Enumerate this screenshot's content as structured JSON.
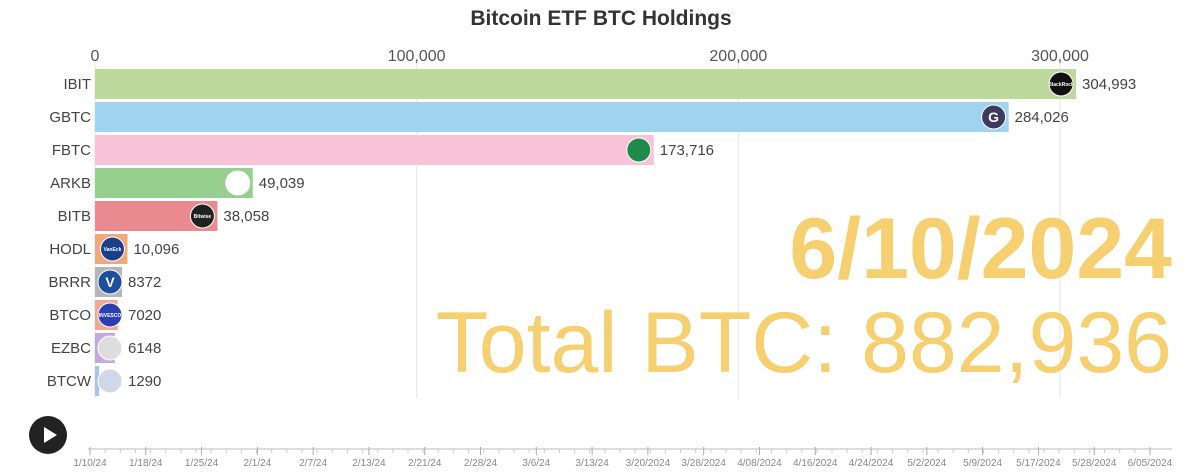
{
  "chart_data": {
    "type": "bar",
    "title": "Bitcoin ETF BTC Holdings",
    "xlim": [
      0,
      330000
    ],
    "x_ticks": [
      0,
      100000,
      200000,
      300000
    ],
    "x_tick_labels": [
      "0",
      "100,000",
      "200,000",
      "300,000"
    ],
    "categories": [
      "IBIT",
      "GBTC",
      "FBTC",
      "ARKB",
      "BITB",
      "HODL",
      "BRRR",
      "BTCO",
      "EZBC",
      "BTCW"
    ],
    "values": [
      304993,
      284026,
      173716,
      49039,
      38058,
      10096,
      8372,
      7020,
      6148,
      1290
    ],
    "value_labels": [
      "304,993",
      "284,026",
      "173,716",
      "49,039",
      "38,058",
      "10,096",
      "8372",
      "7020",
      "6148",
      "1290"
    ],
    "bar_colors": [
      "#bcd99b",
      "#9fd3ee",
      "#f8c3d6",
      "#96cf90",
      "#e98b8e",
      "#efa97a",
      "#b5b5b5",
      "#eea894",
      "#c3a7dd",
      "#a8c4e6"
    ],
    "logos": [
      {
        "name": "blackrock-logo",
        "bg": "#111111",
        "text": "BlackRock"
      },
      {
        "name": "grayscale-logo",
        "bg": "#3a3a62",
        "text": "G"
      },
      {
        "name": "fidelity-logo",
        "bg": "#1f8a4c",
        "text": ""
      },
      {
        "name": "ark-logo",
        "bg": "#ffffff",
        "text": ""
      },
      {
        "name": "bitwise-logo",
        "bg": "#222222",
        "text": "Bitwise"
      },
      {
        "name": "vaneck-logo",
        "bg": "#1c3f8c",
        "text": "VanEck"
      },
      {
        "name": "valkyrie-logo",
        "bg": "#1d4fa0",
        "text": "V"
      },
      {
        "name": "invesco-logo",
        "bg": "#2c3fb0",
        "text": "INVESCO"
      },
      {
        "name": "franklin-logo",
        "bg": "#dddddd",
        "text": ""
      },
      {
        "name": "wisdomtree-logo",
        "bg": "#cfd8e8",
        "text": ""
      }
    ],
    "current_date": "6/10/2024",
    "total_label": "Total BTC: 882,936",
    "timeline_dates": [
      "1/10/24",
      "1/18/24",
      "1/25/24",
      "2/1/24",
      "2/7/24",
      "2/13/24",
      "2/21/24",
      "2/28/24",
      "3/6/24",
      "3/13/24",
      "3/20/2024",
      "3/28/2024",
      "4/08/2024",
      "4/16/2024",
      "4/24/2024",
      "5/2/2024",
      "5/9/2024",
      "5/17/2024",
      "5/28/2024",
      "6/05/2024"
    ],
    "accent_color": "#f6cf70"
  }
}
